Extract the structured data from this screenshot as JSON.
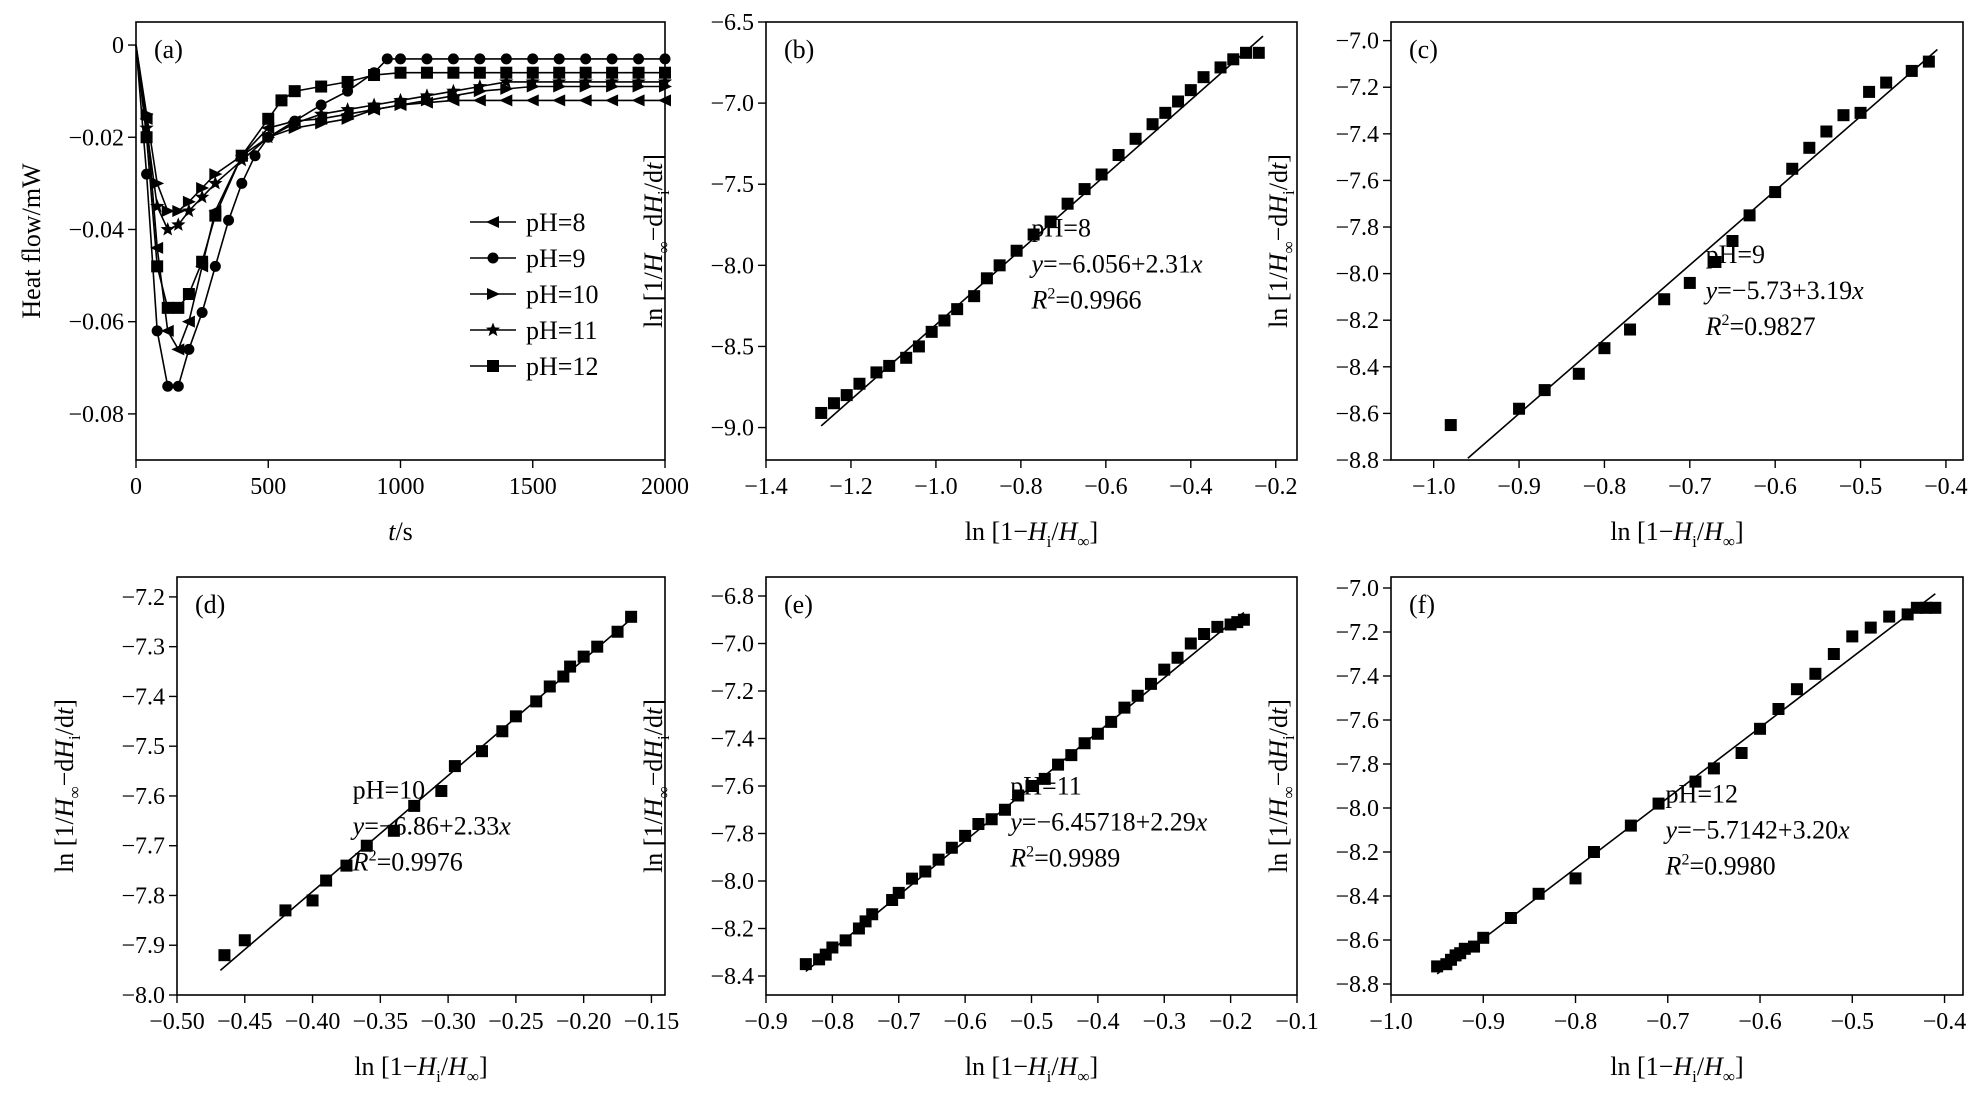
{
  "chart_data": [
    {
      "panel": "(a)",
      "type": "line",
      "xlabel": "t/s",
      "ylabel": "Heat flow/mW",
      "xlim": [
        0,
        2000
      ],
      "ylim": [
        -0.09,
        0.005
      ],
      "xticks": [
        "0",
        "500",
        "1000",
        "1500",
        "2000"
      ],
      "yticks": [
        "0",
        "−0.02",
        "−0.04",
        "−0.06",
        "−0.08"
      ],
      "xtick_values": [
        0,
        500,
        1000,
        1500,
        2000
      ],
      "ytick_values": [
        0,
        -0.02,
        -0.04,
        -0.06,
        -0.08
      ],
      "legend": {
        "placement": "center-right"
      },
      "series": [
        {
          "name": "pH=8",
          "marker": "triangle-left",
          "x": [
            0,
            40,
            80,
            120,
            160,
            200,
            250,
            300,
            400,
            500,
            600,
            700,
            800,
            900,
            1000,
            1100,
            1200,
            1300,
            1400,
            1500,
            1600,
            1700,
            1800,
            1900,
            2000
          ],
          "y": [
            0,
            -0.016,
            -0.044,
            -0.062,
            -0.066,
            -0.06,
            -0.048,
            -0.036,
            -0.024,
            -0.018,
            -0.0165,
            -0.016,
            -0.015,
            -0.014,
            -0.013,
            -0.0125,
            -0.012,
            -0.012,
            -0.012,
            -0.012,
            -0.012,
            -0.012,
            -0.012,
            -0.012,
            -0.012
          ]
        },
        {
          "name": "pH=9",
          "marker": "circle",
          "x": [
            0,
            40,
            80,
            120,
            160,
            200,
            250,
            300,
            350,
            400,
            450,
            500,
            600,
            700,
            800,
            900,
            950,
            1000,
            1100,
            1200,
            1300,
            1400,
            1500,
            1600,
            1700,
            1800,
            1900,
            2000
          ],
          "y": [
            0,
            -0.028,
            -0.062,
            -0.074,
            -0.074,
            -0.066,
            -0.058,
            -0.048,
            -0.038,
            -0.03,
            -0.024,
            -0.02,
            -0.0165,
            -0.013,
            -0.01,
            -0.006,
            -0.003,
            -0.003,
            -0.003,
            -0.003,
            -0.003,
            -0.003,
            -0.003,
            -0.003,
            -0.003,
            -0.003,
            -0.003,
            -0.003
          ]
        },
        {
          "name": "pH=10",
          "marker": "triangle-right",
          "x": [
            0,
            40,
            80,
            120,
            160,
            200,
            250,
            300,
            400,
            500,
            600,
            700,
            800,
            900,
            1000,
            1100,
            1200,
            1300,
            1400,
            1500,
            1600,
            1700,
            1800,
            1900,
            2000
          ],
          "y": [
            0,
            -0.015,
            -0.03,
            -0.036,
            -0.036,
            -0.034,
            -0.031,
            -0.028,
            -0.024,
            -0.02,
            -0.018,
            -0.017,
            -0.016,
            -0.014,
            -0.013,
            -0.012,
            -0.011,
            -0.01,
            -0.0095,
            -0.009,
            -0.009,
            -0.009,
            -0.009,
            -0.009,
            -0.009
          ]
        },
        {
          "name": "pH=11",
          "marker": "star",
          "x": [
            0,
            40,
            80,
            120,
            160,
            200,
            250,
            300,
            400,
            500,
            600,
            700,
            800,
            900,
            1000,
            1100,
            1200,
            1300,
            1400,
            1500,
            1600,
            1700,
            1800,
            1900,
            2000
          ],
          "y": [
            0,
            -0.018,
            -0.035,
            -0.04,
            -0.039,
            -0.036,
            -0.033,
            -0.03,
            -0.025,
            -0.02,
            -0.017,
            -0.015,
            -0.014,
            -0.013,
            -0.012,
            -0.011,
            -0.01,
            -0.009,
            -0.008,
            -0.008,
            -0.008,
            -0.008,
            -0.008,
            -0.008,
            -0.008
          ]
        },
        {
          "name": "pH=12",
          "marker": "square",
          "x": [
            0,
            40,
            80,
            120,
            160,
            200,
            250,
            300,
            400,
            500,
            550,
            600,
            700,
            800,
            900,
            1000,
            1100,
            1200,
            1300,
            1400,
            1500,
            1600,
            1700,
            1800,
            1900,
            2000
          ],
          "y": [
            0,
            -0.02,
            -0.048,
            -0.057,
            -0.057,
            -0.054,
            -0.047,
            -0.037,
            -0.024,
            -0.016,
            -0.012,
            -0.01,
            -0.009,
            -0.008,
            -0.0065,
            -0.006,
            -0.006,
            -0.006,
            -0.006,
            -0.006,
            -0.006,
            -0.006,
            -0.006,
            -0.006,
            -0.006,
            -0.006
          ]
        }
      ]
    },
    {
      "panel": "(b)",
      "type": "scatter",
      "xlabel": "ln [1−Hi/H∞]",
      "ylabel": "ln [1/H∞−dHi/dt]",
      "xlim": [
        -1.4,
        -0.15
      ],
      "ylim": [
        -9.2,
        -6.5
      ],
      "xticks": [
        "−1.4",
        "−1.2",
        "−1.0",
        "−0.8",
        "−0.6",
        "−0.4",
        "−0.2"
      ],
      "xtick_values": [
        -1.4,
        -1.2,
        -1.0,
        -0.8,
        -0.6,
        -0.4,
        -0.2
      ],
      "yticks": [
        "−6.5",
        "−7.0",
        "−7.5",
        "−8.0",
        "−8.5",
        "−9.0"
      ],
      "ytick_values": [
        -6.5,
        -7.0,
        -7.5,
        -8.0,
        -8.5,
        -9.0
      ],
      "annotation": [
        "pH=8",
        "y=−6.056+2.31x",
        "R²=0.9966"
      ],
      "fit": {
        "intercept": -6.056,
        "slope": 2.31,
        "x_range": [
          -1.27,
          -0.23
        ]
      },
      "x": [
        -1.27,
        -1.24,
        -1.21,
        -1.18,
        -1.14,
        -1.11,
        -1.07,
        -1.04,
        -1.01,
        -0.98,
        -0.95,
        -0.91,
        -0.88,
        -0.85,
        -0.81,
        -0.77,
        -0.73,
        -0.69,
        -0.65,
        -0.61,
        -0.57,
        -0.53,
        -0.49,
        -0.46,
        -0.43,
        -0.4,
        -0.37,
        -0.33,
        -0.3,
        -0.27,
        -0.24
      ],
      "y": [
        -8.91,
        -8.85,
        -8.8,
        -8.73,
        -8.66,
        -8.62,
        -8.57,
        -8.5,
        -8.41,
        -8.34,
        -8.27,
        -8.19,
        -8.08,
        -8.0,
        -7.91,
        -7.81,
        -7.73,
        -7.62,
        -7.53,
        -7.44,
        -7.32,
        -7.22,
        -7.13,
        -7.06,
        -6.99,
        -6.92,
        -6.84,
        -6.78,
        -6.73,
        -6.69,
        -6.69
      ]
    },
    {
      "panel": "(c)",
      "type": "scatter",
      "xlabel": "ln [1−Hi/H∞]",
      "ylabel": "ln [1/H∞−dHi/dt]",
      "xlim": [
        -1.05,
        -0.38
      ],
      "ylim": [
        -8.8,
        -6.92
      ],
      "xticks": [
        "−1.0",
        "−0.9",
        "−0.8",
        "−0.7",
        "−0.6",
        "−0.5",
        "−0.4"
      ],
      "xtick_values": [
        -1.0,
        -0.9,
        -0.8,
        -0.7,
        -0.6,
        -0.5,
        -0.4
      ],
      "yticks": [
        "−7.0",
        "−7.2",
        "−7.4",
        "−7.6",
        "−7.8",
        "−8.0",
        "−8.2",
        "−8.4",
        "−8.6",
        "−8.8"
      ],
      "ytick_values": [
        -7.0,
        -7.2,
        -7.4,
        -7.6,
        -7.8,
        -8.0,
        -8.2,
        -8.4,
        -8.6,
        -8.8
      ],
      "annotation": [
        "pH=9",
        "y=−5.73+3.19x",
        "R²=0.9827"
      ],
      "fit": {
        "intercept": -5.73,
        "slope": 3.19,
        "x_range": [
          -0.96,
          -0.41
        ]
      },
      "x": [
        -0.98,
        -0.9,
        -0.87,
        -0.83,
        -0.8,
        -0.77,
        -0.73,
        -0.7,
        -0.67,
        -0.65,
        -0.63,
        -0.6,
        -0.58,
        -0.56,
        -0.54,
        -0.52,
        -0.5,
        -0.49,
        -0.47,
        -0.44,
        -0.42
      ],
      "y": [
        -8.65,
        -8.58,
        -8.5,
        -8.43,
        -8.32,
        -8.24,
        -8.11,
        -8.04,
        -7.95,
        -7.86,
        -7.75,
        -7.65,
        -7.55,
        -7.46,
        -7.39,
        -7.32,
        -7.31,
        -7.22,
        -7.18,
        -7.13,
        -7.09
      ]
    },
    {
      "panel": "(d)",
      "type": "scatter",
      "xlabel": "ln [1−Hi/H∞]",
      "ylabel": "ln [1/H∞−dHi/dt]",
      "xlim": [
        -0.5,
        -0.14
      ],
      "ylim": [
        -8.0,
        -7.16
      ],
      "xticks": [
        "−0.50",
        "−0.45",
        "−0.40",
        "−0.35",
        "−0.30",
        "−0.25",
        "−0.20",
        "−0.15"
      ],
      "xtick_values": [
        -0.5,
        -0.45,
        -0.4,
        -0.35,
        -0.3,
        -0.25,
        -0.2,
        -0.15
      ],
      "yticks": [
        "−7.2",
        "−7.3",
        "−7.4",
        "−7.5",
        "−7.6",
        "−7.7",
        "−7.8",
        "−7.9",
        "−8.0"
      ],
      "ytick_values": [
        -7.2,
        -7.3,
        -7.4,
        -7.5,
        -7.6,
        -7.7,
        -7.8,
        -7.9,
        -8.0
      ],
      "annotation": [
        "pH=10",
        "y=−6.86+2.33x",
        "R²=0.9976"
      ],
      "fit": {
        "intercept": -6.86,
        "slope": 2.33,
        "x_range": [
          -0.468,
          -0.163
        ]
      },
      "x": [
        -0.465,
        -0.45,
        -0.42,
        -0.4,
        -0.39,
        -0.375,
        -0.36,
        -0.34,
        -0.325,
        -0.305,
        -0.295,
        -0.275,
        -0.26,
        -0.25,
        -0.235,
        -0.225,
        -0.215,
        -0.21,
        -0.2,
        -0.19,
        -0.175,
        -0.165
      ],
      "y": [
        -7.92,
        -7.89,
        -7.83,
        -7.81,
        -7.77,
        -7.74,
        -7.7,
        -7.67,
        -7.62,
        -7.59,
        -7.54,
        -7.51,
        -7.47,
        -7.44,
        -7.41,
        -7.38,
        -7.36,
        -7.34,
        -7.32,
        -7.3,
        -7.27,
        -7.24
      ]
    },
    {
      "panel": "(e)",
      "type": "scatter",
      "xlabel": "ln [1−Hi/H∞]",
      "ylabel": "ln [1/H∞−dHi/dt]",
      "xlim": [
        -0.9,
        -0.1
      ],
      "ylim": [
        -8.48,
        -6.72
      ],
      "xticks": [
        "−0.9",
        "−0.8",
        "−0.7",
        "−0.6",
        "−0.5",
        "−0.4",
        "−0.3",
        "−0.2",
        "−0.1"
      ],
      "xtick_values": [
        -0.9,
        -0.8,
        -0.7,
        -0.6,
        -0.5,
        -0.4,
        -0.3,
        -0.2,
        -0.1
      ],
      "yticks": [
        "−6.8",
        "−7.0",
        "−7.2",
        "−7.4",
        "−7.6",
        "−7.8",
        "−8.0",
        "−8.2",
        "−8.4"
      ],
      "ytick_values": [
        -6.8,
        -7.0,
        -7.2,
        -7.4,
        -7.6,
        -7.8,
        -8.0,
        -8.2,
        -8.4
      ],
      "annotation": [
        "pH=11",
        "y=−6.45718+2.29x",
        "R²=0.9989"
      ],
      "fit": {
        "intercept": -6.45718,
        "slope": 2.29,
        "x_range": [
          -0.84,
          -0.18
        ]
      },
      "x": [
        -0.84,
        -0.82,
        -0.81,
        -0.8,
        -0.78,
        -0.76,
        -0.75,
        -0.74,
        -0.71,
        -0.7,
        -0.68,
        -0.66,
        -0.64,
        -0.62,
        -0.6,
        -0.58,
        -0.56,
        -0.54,
        -0.52,
        -0.5,
        -0.48,
        -0.46,
        -0.44,
        -0.42,
        -0.4,
        -0.38,
        -0.36,
        -0.34,
        -0.32,
        -0.3,
        -0.28,
        -0.26,
        -0.24,
        -0.22,
        -0.2,
        -0.19,
        -0.18
      ],
      "y": [
        -8.35,
        -8.33,
        -8.31,
        -8.28,
        -8.25,
        -8.2,
        -8.17,
        -8.14,
        -8.08,
        -8.05,
        -7.99,
        -7.96,
        -7.91,
        -7.86,
        -7.81,
        -7.76,
        -7.74,
        -7.7,
        -7.64,
        -7.6,
        -7.57,
        -7.51,
        -7.47,
        -7.42,
        -7.38,
        -7.33,
        -7.27,
        -7.22,
        -7.17,
        -7.11,
        -7.06,
        -7.0,
        -6.96,
        -6.93,
        -6.92,
        -6.91,
        -6.9
      ]
    },
    {
      "panel": "(f)",
      "type": "scatter",
      "xlabel": "ln [1−Hi/H∞]",
      "ylabel": "ln [1/H∞−dHi/dt]",
      "xlim": [
        -1.0,
        -0.38
      ],
      "ylim": [
        -8.85,
        -6.95
      ],
      "xticks": [
        "−1.0",
        "−0.9",
        "−0.8",
        "−0.7",
        "−0.6",
        "−0.5",
        "−0.4"
      ],
      "xtick_values": [
        -1.0,
        -0.9,
        -0.8,
        -0.7,
        -0.6,
        -0.5,
        -0.4
      ],
      "yticks": [
        "−7.0",
        "−7.2",
        "−7.4",
        "−7.6",
        "−7.8",
        "−8.0",
        "−8.2",
        "−8.4",
        "−8.6",
        "−8.8"
      ],
      "ytick_values": [
        -7.0,
        -7.2,
        -7.4,
        -7.6,
        -7.8,
        -8.0,
        -8.2,
        -8.4,
        -8.6,
        -8.8
      ],
      "annotation": [
        "pH=12",
        "y=−5.7142+3.20x",
        "R²=0.9980"
      ],
      "fit": {
        "intercept": -5.7142,
        "slope": 3.2,
        "x_range": [
          -0.95,
          -0.41
        ]
      },
      "x": [
        -0.95,
        -0.94,
        -0.935,
        -0.93,
        -0.925,
        -0.92,
        -0.91,
        -0.9,
        -0.87,
        -0.84,
        -0.78,
        -0.8,
        -0.74,
        -0.71,
        -0.67,
        -0.65,
        -0.62,
        -0.6,
        -0.58,
        -0.56,
        -0.54,
        -0.52,
        -0.5,
        -0.48,
        -0.46,
        -0.44,
        -0.43,
        -0.42,
        -0.41
      ],
      "y": [
        -8.72,
        -8.71,
        -8.69,
        -8.67,
        -8.66,
        -8.64,
        -8.63,
        -8.59,
        -8.5,
        -8.39,
        -8.2,
        -8.32,
        -8.08,
        -7.98,
        -7.88,
        -7.82,
        -7.75,
        -7.64,
        -7.55,
        -7.46,
        -7.39,
        -7.3,
        -7.22,
        -7.18,
        -7.13,
        -7.12,
        -7.09,
        -7.09,
        -7.09
      ]
    }
  ]
}
